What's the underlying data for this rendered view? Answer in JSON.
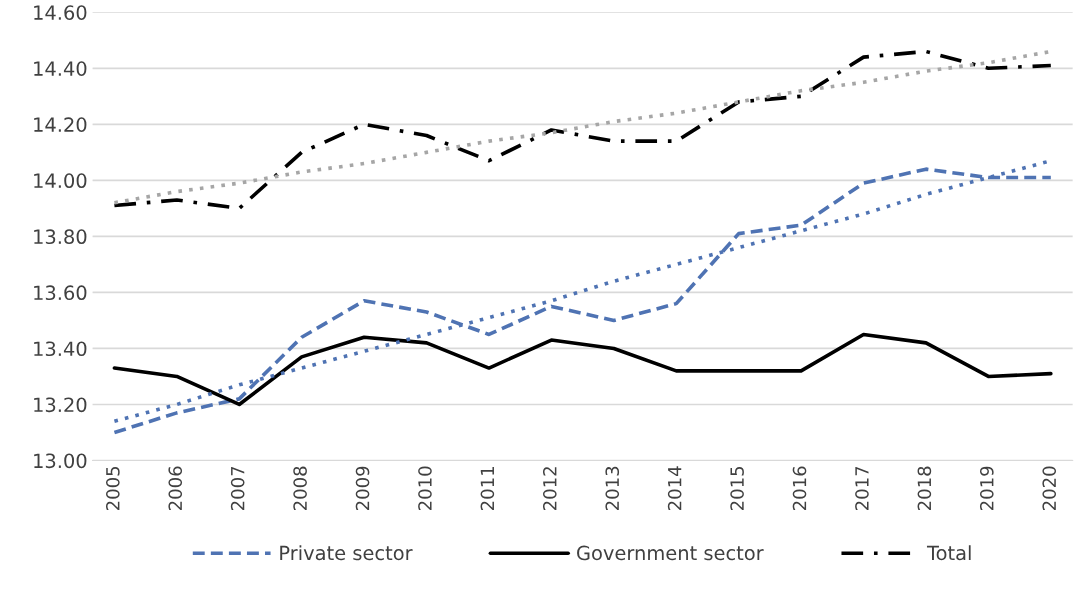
{
  "chart_data": {
    "type": "line",
    "categories": [
      "2005",
      "2006",
      "2007",
      "2008",
      "2009",
      "2010",
      "2011",
      "2012",
      "2013",
      "2014",
      "2015",
      "2016",
      "2017",
      "2018",
      "2019",
      "2020"
    ],
    "series": [
      {
        "name": "Private sector",
        "color": "#4f73b3",
        "line_style": "dashed",
        "values": [
          13.1,
          13.17,
          13.22,
          13.44,
          13.57,
          13.53,
          13.45,
          13.55,
          13.5,
          13.56,
          13.81,
          13.84,
          13.99,
          14.04,
          14.01,
          14.01
        ]
      },
      {
        "name": "Government sector",
        "color": "#000000",
        "line_style": "solid",
        "values": [
          13.33,
          13.3,
          13.2,
          13.37,
          13.44,
          13.42,
          13.33,
          13.43,
          13.4,
          13.32,
          13.32,
          13.32,
          13.45,
          13.42,
          13.3,
          13.31
        ]
      },
      {
        "name": "Total",
        "color": "#000000",
        "line_style": "dashdot",
        "values": [
          13.91,
          13.93,
          13.9,
          14.1,
          14.2,
          14.16,
          14.07,
          14.18,
          14.14,
          14.14,
          14.28,
          14.3,
          14.44,
          14.46,
          14.4,
          14.41
        ]
      },
      {
        "color": "#4f73b3",
        "line_style": "dotted",
        "values": [
          13.14,
          13.2,
          13.27,
          13.33,
          13.39,
          13.45,
          13.51,
          13.57,
          13.64,
          13.7,
          13.76,
          13.82,
          13.88,
          13.95,
          14.01,
          14.07
        ]
      },
      {
        "color": "#a6a6a6",
        "line_style": "dotted",
        "values": [
          13.92,
          13.96,
          13.99,
          14.03,
          14.06,
          14.1,
          14.14,
          14.17,
          14.21,
          14.24,
          14.28,
          14.32,
          14.35,
          14.39,
          14.42,
          14.46
        ]
      }
    ],
    "ylim": [
      13.0,
      14.6
    ],
    "yticks": [
      {
        "value": 13.0,
        "label": "13.00"
      },
      {
        "value": 13.2,
        "label": "13.20"
      },
      {
        "value": 13.4,
        "label": "13.40"
      },
      {
        "value": 13.6,
        "label": "13.60"
      },
      {
        "value": 13.8,
        "label": "13.80"
      },
      {
        "value": 14.0,
        "label": "14.00"
      },
      {
        "value": 14.2,
        "label": "14.20"
      },
      {
        "value": 14.4,
        "label": "14.40"
      },
      {
        "value": 14.6,
        "label": "14.60"
      }
    ],
    "grid": "y",
    "legend": "bottom",
    "marker": "none"
  }
}
